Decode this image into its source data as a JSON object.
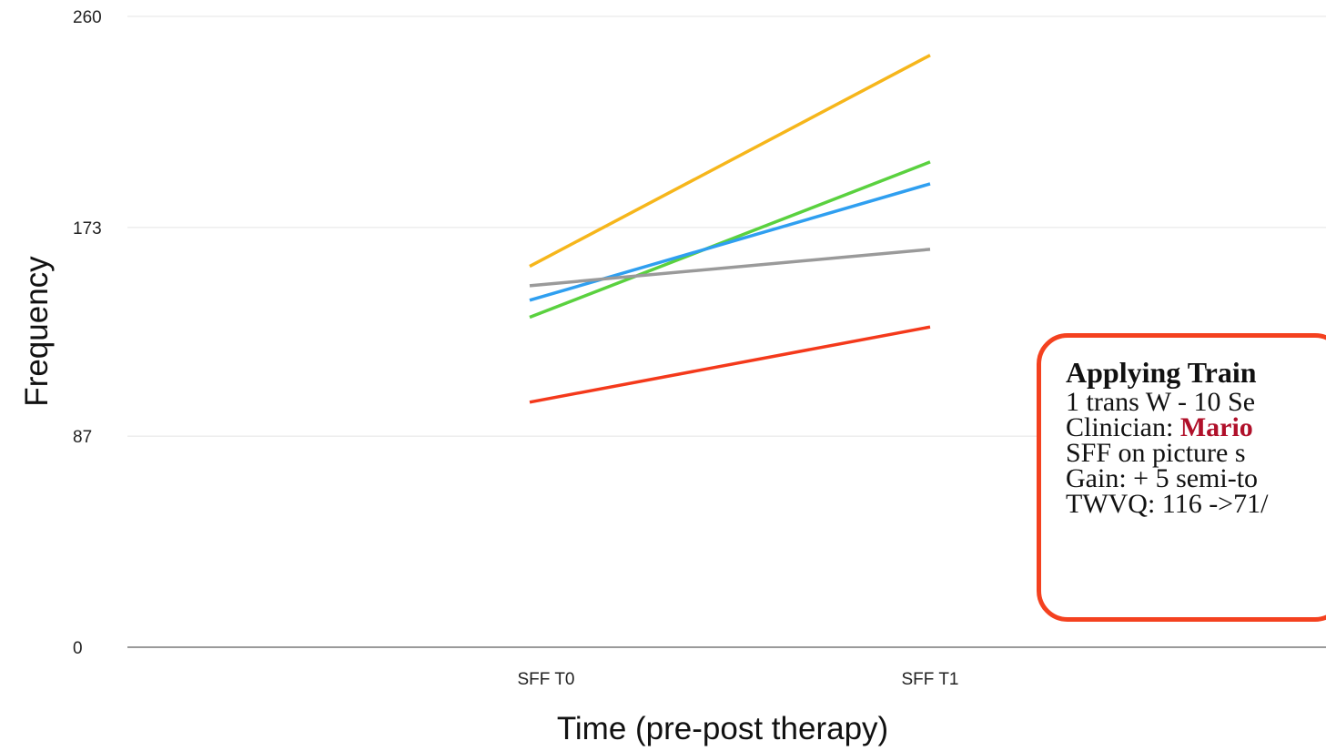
{
  "chart_data": {
    "type": "line",
    "ylabel": "Frequency",
    "xlabel": "Time (pre-post therapy)",
    "categories": [
      "SFF T0",
      "SFF T1"
    ],
    "yticks": [
      0,
      87,
      173,
      260
    ],
    "ylim": [
      0,
      260
    ],
    "grid": true,
    "series": [
      {
        "color": "#f6b61b",
        "values": [
          157,
          244
        ]
      },
      {
        "color": "#5ad13f",
        "values": [
          136,
          200
        ]
      },
      {
        "color": "#2f9ff0",
        "values": [
          143,
          191
        ]
      },
      {
        "color": "#9a9a9a",
        "values": [
          149,
          164
        ]
      },
      {
        "color": "#f4391b",
        "values": [
          101,
          132
        ]
      }
    ]
  },
  "annotation": {
    "title": "Applying Train",
    "lines": [
      "1 trans W - 10 Se",
      "SFF on picture s",
      "Gain: + 5 semi-to",
      "TWVQ: 116 ->71/"
    ],
    "clinician_prefix": "Clinician: ",
    "clinician_name": "Mario",
    "border_color": "#f4411f",
    "highlight_color": "#b0102a"
  }
}
